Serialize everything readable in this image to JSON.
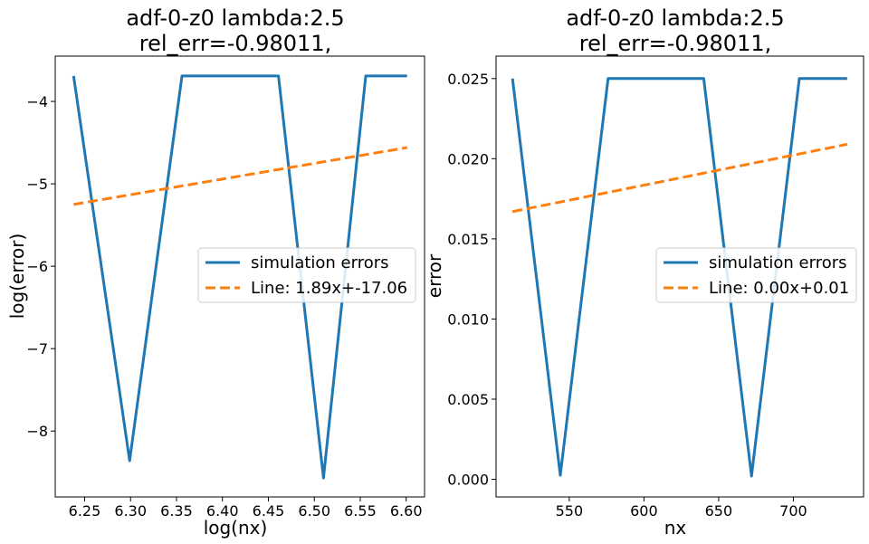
{
  "chart_data": [
    {
      "type": "line",
      "title_line1": "adf-0-z0 lambda:2.5",
      "title_line2": "rel_err=-0.98011,",
      "xlabel": "log(nx)",
      "ylabel": "log(error)",
      "xlim": [
        6.218,
        6.62
      ],
      "ylim": [
        -8.8,
        -3.45
      ],
      "xticks": [
        6.25,
        6.3,
        6.35,
        6.4,
        6.45,
        6.5,
        6.55,
        6.6
      ],
      "xtick_labels": [
        "6.25",
        "6.30",
        "6.35",
        "6.40",
        "6.45",
        "6.50",
        "6.55",
        "6.60"
      ],
      "yticks": [
        -8,
        -7,
        -6,
        -5,
        -4
      ],
      "ytick_labels": [
        "−8",
        "−7",
        "−6",
        "−5",
        "−4"
      ],
      "legend_position": "center-right",
      "series": [
        {
          "name": "simulation errors",
          "style": "solid",
          "color": "#1f77b4",
          "x": [
            6.238,
            6.299,
            6.356,
            6.461,
            6.51,
            6.556,
            6.601
          ],
          "y": [
            -3.69,
            -8.36,
            -3.69,
            -3.69,
            -8.57,
            -3.69,
            -3.69
          ]
        },
        {
          "name": "Line: 1.89x+-17.06",
          "style": "dashed",
          "color": "#ff7f0e",
          "x": [
            6.238,
            6.601
          ],
          "y": [
            -5.25,
            -4.56
          ]
        }
      ]
    },
    {
      "type": "line",
      "title_line1": "adf-0-z0 lambda:2.5",
      "title_line2": "rel_err=-0.98011,",
      "xlabel": "nx",
      "ylabel": "error",
      "xlim": [
        501,
        747
      ],
      "ylim": [
        -0.0011,
        0.0264
      ],
      "xticks": [
        550,
        600,
        650,
        700
      ],
      "xtick_labels": [
        "550",
        "600",
        "650",
        "700"
      ],
      "yticks": [
        0.0,
        0.005,
        0.01,
        0.015,
        0.02,
        0.025
      ],
      "ytick_labels": [
        "0.000",
        "0.005",
        "0.010",
        "0.015",
        "0.020",
        "0.025"
      ],
      "legend_position": "center-right",
      "series": [
        {
          "name": "simulation errors",
          "style": "solid",
          "color": "#1f77b4",
          "x": [
            512,
            544,
            576,
            640,
            672,
            704,
            736
          ],
          "y": [
            0.025,
            0.00025,
            0.025,
            0.025,
            0.0002,
            0.025,
            0.025
          ]
        },
        {
          "name": "Line: 0.00x+0.01",
          "style": "dashed",
          "color": "#ff7f0e",
          "x": [
            512,
            736
          ],
          "y": [
            0.0167,
            0.0209
          ]
        }
      ]
    }
  ]
}
